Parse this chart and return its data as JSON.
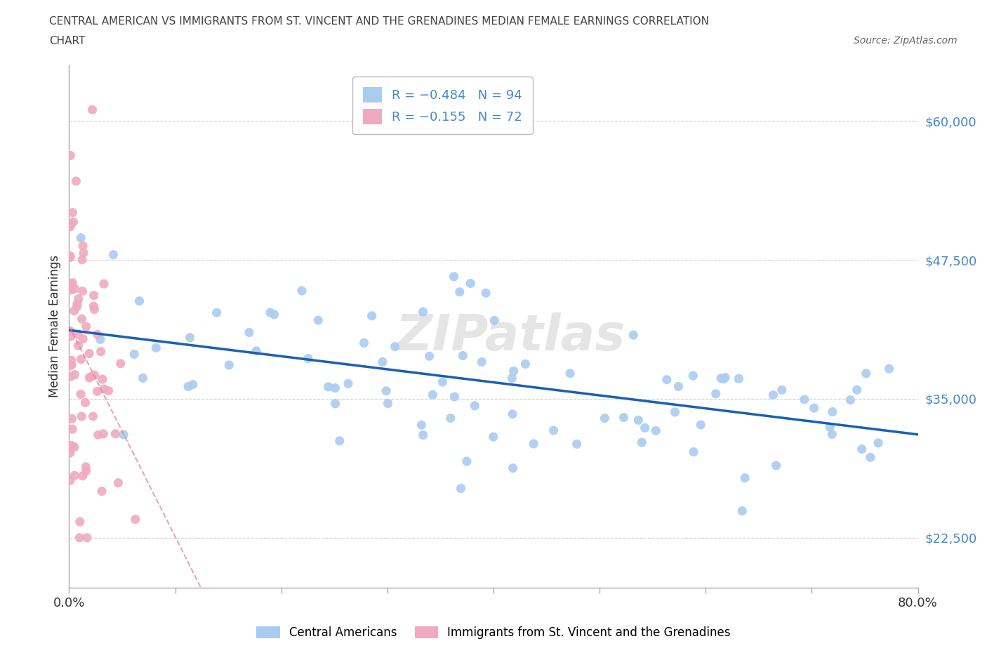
{
  "title_line1": "CENTRAL AMERICAN VS IMMIGRANTS FROM ST. VINCENT AND THE GRENADINES MEDIAN FEMALE EARNINGS CORRELATION",
  "title_line2": "CHART",
  "source": "Source: ZipAtlas.com",
  "ylabel": "Median Female Earnings",
  "xlim": [
    0.0,
    0.8
  ],
  "ylim": [
    18000,
    65000
  ],
  "yticks": [
    22500,
    35000,
    47500,
    60000
  ],
  "ytick_labels": [
    "$22,500",
    "$35,000",
    "$47,500",
    "$60,000"
  ],
  "blue_R": -0.484,
  "blue_N": 94,
  "pink_R": -0.155,
  "pink_N": 72,
  "blue_color": "#aaccf0",
  "pink_color": "#f0aac0",
  "blue_line_color": "#1a5fb4",
  "pink_line_color": "#e08090",
  "legend_label_blue": "Central Americans",
  "legend_label_pink": "Immigrants from St. Vincent and the Grenadines",
  "watermark": "ZIPatlas",
  "ytick_color": "#4488cc",
  "title_color": "#444444",
  "source_color": "#666666"
}
